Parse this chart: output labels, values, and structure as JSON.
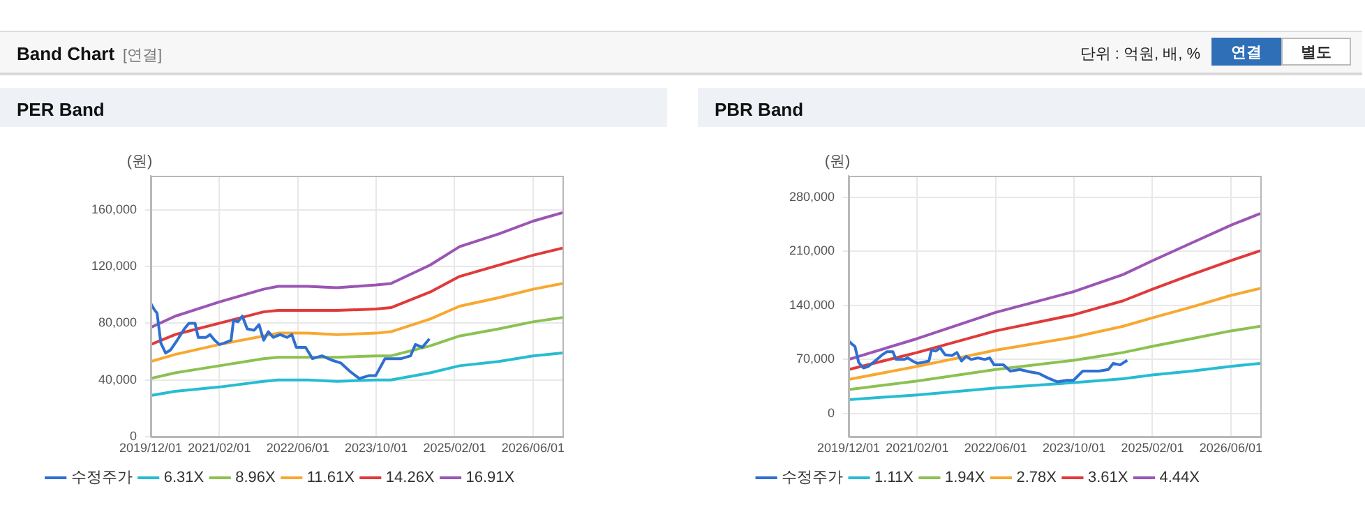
{
  "chart_data": [
    {
      "type": "other",
      "title": "Band Chart",
      "annotations": [
        "[연결]",
        "단위 : 억원, 배, %",
        "연결",
        "별도"
      ]
    },
    {
      "type": "line",
      "title": "PER Band",
      "ylabel": "(원)",
      "xlim": [
        "2019-12-01",
        "2026-12-01"
      ],
      "xticks": [
        {
          "value": "2019-12-01",
          "label": "2019/12/01"
        },
        {
          "value": "2021-02-01",
          "label": "2021/02/01"
        },
        {
          "value": "2022-06-01",
          "label": "2022/06/01"
        },
        {
          "value": "2023-10-01",
          "label": "2023/10/01"
        },
        {
          "value": "2025-02-01",
          "label": "2025/02/01"
        },
        {
          "value": "2026-06-01",
          "label": "2026/06/01"
        }
      ],
      "ylim": [
        0,
        184000
      ],
      "yticks": [
        {
          "value": 0,
          "label": "0"
        },
        {
          "value": 40000,
          "label": "40,000"
        },
        {
          "value": 80000,
          "label": "80,000"
        },
        {
          "value": 120000,
          "label": "120,000"
        },
        {
          "value": 160000,
          "label": "160,000"
        }
      ],
      "grid": true,
      "legend": "bottom",
      "marker": "none",
      "series": [
        {
          "name": "수정주가",
          "color": "#2f6fd1",
          "x": [
            "2019-12-01",
            "2019-12-21",
            "2020-01-10",
            "2020-02-03",
            "2020-03-02",
            "2020-04-01",
            "2020-05-13",
            "2020-06-27",
            "2020-07-25",
            "2020-09-02",
            "2020-09-22",
            "2020-11-10",
            "2020-12-04",
            "2021-01-02",
            "2021-02-01",
            "2021-03-01",
            "2021-04-13",
            "2021-04-28",
            "2021-05-25",
            "2021-06-22",
            "2021-07-22",
            "2021-09-04",
            "2021-10-04",
            "2021-11-02",
            "2021-12-01",
            "2022-01-01",
            "2022-02-13",
            "2022-03-25",
            "2022-04-25",
            "2022-05-22",
            "2022-07-19",
            "2022-09-01",
            "2022-10-30",
            "2022-12-28",
            "2023-02-24",
            "2023-04-21",
            "2023-06-18",
            "2023-08-16",
            "2023-09-28",
            "2023-11-25",
            "2024-03-04",
            "2024-05-01",
            "2024-06-01",
            "2024-07-13",
            "2024-08-27"
          ],
          "values": [
            94000,
            90000,
            87000,
            66000,
            59000,
            61000,
            68000,
            76000,
            80000,
            80000,
            70000,
            70000,
            72000,
            68000,
            65000,
            66000,
            68000,
            82000,
            81000,
            85000,
            76000,
            75000,
            79000,
            68000,
            74000,
            70000,
            72000,
            70000,
            72000,
            63000,
            63000,
            55000,
            57000,
            54000,
            52000,
            46000,
            41000,
            43000,
            43000,
            55000,
            55000,
            57000,
            65000,
            63000,
            69000
          ]
        },
        {
          "name": "6.31X",
          "color": "#27bcd2",
          "x": [
            "2019-12-01",
            "2020-05-01",
            "2021-02-01",
            "2021-11-01",
            "2022-02-01",
            "2022-08-01",
            "2023-02-01",
            "2023-10-01",
            "2024-01-01",
            "2024-09-01",
            "2025-03-01",
            "2025-11-01",
            "2026-06-01",
            "2026-12-01"
          ],
          "values": [
            29000,
            32000,
            35000,
            39000,
            40000,
            40000,
            39000,
            40000,
            40000,
            45000,
            50000,
            53000,
            57000,
            59000
          ]
        },
        {
          "name": "8.96X",
          "color": "#8cc152",
          "x": [
            "2019-12-01",
            "2020-05-01",
            "2021-02-01",
            "2021-11-01",
            "2022-02-01",
            "2022-08-01",
            "2023-02-01",
            "2023-10-01",
            "2024-01-01",
            "2024-09-01",
            "2025-03-01",
            "2025-11-01",
            "2026-06-01",
            "2026-12-01"
          ],
          "values": [
            41000,
            45000,
            50000,
            55000,
            56000,
            56000,
            56000,
            57000,
            57000,
            64000,
            71000,
            76000,
            81000,
            84000
          ]
        },
        {
          "name": "11.61X",
          "color": "#f8a830",
          "x": [
            "2019-12-01",
            "2020-05-01",
            "2021-02-01",
            "2021-11-01",
            "2022-02-01",
            "2022-08-01",
            "2023-02-01",
            "2023-10-01",
            "2024-01-01",
            "2024-09-01",
            "2025-03-01",
            "2025-11-01",
            "2026-06-01",
            "2026-12-01"
          ],
          "values": [
            53000,
            58000,
            65000,
            71000,
            73000,
            73000,
            72000,
            73000,
            74000,
            83000,
            92000,
            98000,
            104000,
            108000
          ]
        },
        {
          "name": "14.26X",
          "color": "#e03a3a",
          "x": [
            "2019-12-01",
            "2020-05-01",
            "2021-02-01",
            "2021-11-01",
            "2022-02-01",
            "2022-08-01",
            "2023-02-01",
            "2023-10-01",
            "2024-01-01",
            "2024-09-01",
            "2025-03-01",
            "2025-11-01",
            "2026-06-01",
            "2026-12-01"
          ],
          "values": [
            65000,
            72000,
            80000,
            88000,
            89000,
            89000,
            89000,
            90000,
            91000,
            102000,
            113000,
            121000,
            128000,
            133000
          ]
        },
        {
          "name": "16.91X",
          "color": "#9b55b4",
          "x": [
            "2019-12-01",
            "2020-05-01",
            "2021-02-01",
            "2021-11-01",
            "2022-02-01",
            "2022-08-01",
            "2023-02-01",
            "2023-10-01",
            "2024-01-01",
            "2024-09-01",
            "2025-03-01",
            "2025-11-01",
            "2026-06-01",
            "2026-12-01"
          ],
          "values": [
            77000,
            85000,
            95000,
            104000,
            106000,
            106000,
            105000,
            107000,
            108000,
            121000,
            134000,
            143000,
            152000,
            158000
          ]
        }
      ]
    },
    {
      "type": "line",
      "title": "PBR Band",
      "ylabel": "(원)",
      "xlim": [
        "2019-12-01",
        "2026-12-01"
      ],
      "xticks": [
        {
          "value": "2019-12-01",
          "label": "2019/12/01"
        },
        {
          "value": "2021-02-01",
          "label": "2021/02/01"
        },
        {
          "value": "2022-06-01",
          "label": "2022/06/01"
        },
        {
          "value": "2023-10-01",
          "label": "2023/10/01"
        },
        {
          "value": "2025-02-01",
          "label": "2025/02/01"
        },
        {
          "value": "2026-06-01",
          "label": "2026/06/01"
        }
      ],
      "ylim": [
        -30000,
        308000
      ],
      "yticks": [
        {
          "value": 0,
          "label": "0"
        },
        {
          "value": 70000,
          "label": "70,000"
        },
        {
          "value": 140000,
          "label": "140,000"
        },
        {
          "value": 210000,
          "label": "210,000"
        },
        {
          "value": 280000,
          "label": "280,000"
        }
      ],
      "grid": true,
      "legend": "bottom",
      "marker": "none",
      "series": [
        {
          "name": "수정주가",
          "color": "#2f6fd1",
          "x": [
            "2019-12-01",
            "2019-12-21",
            "2020-01-10",
            "2020-02-03",
            "2020-03-02",
            "2020-04-01",
            "2020-05-13",
            "2020-06-27",
            "2020-07-25",
            "2020-09-02",
            "2020-09-22",
            "2020-11-10",
            "2020-12-04",
            "2021-01-02",
            "2021-02-01",
            "2021-03-01",
            "2021-04-13",
            "2021-04-28",
            "2021-05-25",
            "2021-06-22",
            "2021-07-22",
            "2021-09-04",
            "2021-10-04",
            "2021-11-02",
            "2021-12-01",
            "2022-01-01",
            "2022-02-13",
            "2022-03-25",
            "2022-04-25",
            "2022-05-22",
            "2022-07-19",
            "2022-09-01",
            "2022-10-30",
            "2022-12-28",
            "2023-02-24",
            "2023-04-21",
            "2023-06-18",
            "2023-08-16",
            "2023-09-28",
            "2023-11-25",
            "2024-03-04",
            "2024-05-01",
            "2024-06-01",
            "2024-07-13",
            "2024-08-27"
          ],
          "values": [
            94000,
            90000,
            87000,
            66000,
            59000,
            61000,
            68000,
            76000,
            80000,
            80000,
            70000,
            70000,
            72000,
            68000,
            65000,
            66000,
            68000,
            82000,
            81000,
            85000,
            76000,
            75000,
            79000,
            68000,
            74000,
            70000,
            72000,
            70000,
            72000,
            63000,
            63000,
            55000,
            57000,
            54000,
            52000,
            46000,
            41000,
            43000,
            43000,
            55000,
            55000,
            57000,
            65000,
            63000,
            69000
          ]
        },
        {
          "name": "1.11X",
          "color": "#27bcd2",
          "x": [
            "2019-12-01",
            "2021-02-01",
            "2022-06-01",
            "2023-10-01",
            "2024-08-01",
            "2025-02-01",
            "2025-10-01",
            "2026-06-01",
            "2026-12-01"
          ],
          "values": [
            18000,
            24000,
            33000,
            40000,
            45000,
            50000,
            55000,
            61000,
            65000
          ]
        },
        {
          "name": "1.94X",
          "color": "#8cc152",
          "x": [
            "2019-12-01",
            "2021-02-01",
            "2022-06-01",
            "2023-10-01",
            "2024-08-01",
            "2025-02-01",
            "2025-10-01",
            "2026-06-01",
            "2026-12-01"
          ],
          "values": [
            31000,
            42000,
            57000,
            69000,
            79000,
            87000,
            97000,
            107000,
            113000
          ]
        },
        {
          "name": "2.78X",
          "color": "#f8a830",
          "x": [
            "2019-12-01",
            "2021-02-01",
            "2022-06-01",
            "2023-10-01",
            "2024-08-01",
            "2025-02-01",
            "2025-10-01",
            "2026-06-01",
            "2026-12-01"
          ],
          "values": [
            44000,
            61000,
            82000,
            99000,
            113000,
            124000,
            138000,
            153000,
            162000
          ]
        },
        {
          "name": "3.61X",
          "color": "#e03a3a",
          "x": [
            "2019-12-01",
            "2021-02-01",
            "2022-06-01",
            "2023-10-01",
            "2024-08-01",
            "2025-02-01",
            "2025-10-01",
            "2026-06-01",
            "2026-12-01"
          ],
          "values": [
            57000,
            79000,
            107000,
            128000,
            146000,
            161000,
            180000,
            198000,
            211000
          ]
        },
        {
          "name": "4.44X",
          "color": "#9b55b4",
          "x": [
            "2019-12-01",
            "2021-02-01",
            "2022-06-01",
            "2023-10-01",
            "2024-08-01",
            "2025-02-01",
            "2025-10-01",
            "2026-06-01",
            "2026-12-01"
          ],
          "values": [
            70000,
            97000,
            131000,
            158000,
            180000,
            198000,
            221000,
            244000,
            259000
          ]
        }
      ]
    }
  ]
}
